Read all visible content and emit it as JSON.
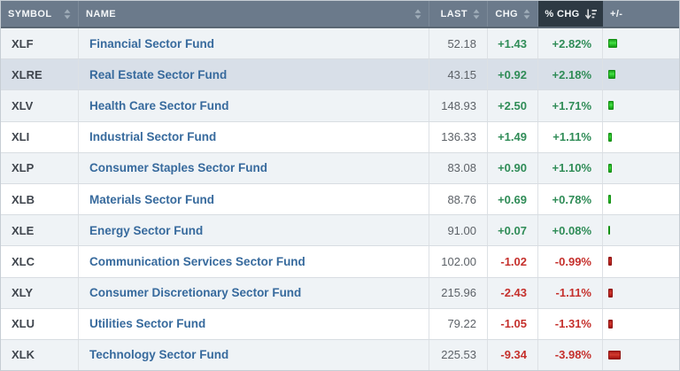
{
  "table": {
    "columns": [
      {
        "label": "SYMBOL",
        "sortable": true
      },
      {
        "label": "NAME",
        "sortable": true
      },
      {
        "label": "LAST",
        "sortable": true
      },
      {
        "label": "CHG",
        "sortable": true
      },
      {
        "label": "% CHG",
        "sortable": true,
        "active_sort": "desc"
      },
      {
        "label": "+/-",
        "sortable": false
      }
    ],
    "rows": [
      {
        "symbol": "XLF",
        "name": "Financial Sector Fund",
        "last": "52.18",
        "chg": "+1.43",
        "pct": "+2.82%",
        "dir": "up",
        "bar": 10
      },
      {
        "symbol": "XLRE",
        "name": "Real Estate Sector Fund",
        "last": "43.15",
        "chg": "+0.92",
        "pct": "+2.18%",
        "dir": "up",
        "bar": 8,
        "highlighted": true
      },
      {
        "symbol": "XLV",
        "name": "Health Care Sector Fund",
        "last": "148.93",
        "chg": "+2.50",
        "pct": "+1.71%",
        "dir": "up",
        "bar": 6
      },
      {
        "symbol": "XLI",
        "name": "Industrial Sector Fund",
        "last": "136.33",
        "chg": "+1.49",
        "pct": "+1.11%",
        "dir": "up",
        "bar": 4
      },
      {
        "symbol": "XLP",
        "name": "Consumer Staples Sector Fund",
        "last": "83.08",
        "chg": "+0.90",
        "pct": "+1.10%",
        "dir": "up",
        "bar": 4
      },
      {
        "symbol": "XLB",
        "name": "Materials Sector Fund",
        "last": "88.76",
        "chg": "+0.69",
        "pct": "+0.78%",
        "dir": "up",
        "bar": 3
      },
      {
        "symbol": "XLE",
        "name": "Energy Sector Fund",
        "last": "91.00",
        "chg": "+0.07",
        "pct": "+0.08%",
        "dir": "up",
        "bar": 2
      },
      {
        "symbol": "XLC",
        "name": "Communication Services Sector Fund",
        "last": "102.00",
        "chg": "-1.02",
        "pct": "-0.99%",
        "dir": "down",
        "bar": 4
      },
      {
        "symbol": "XLY",
        "name": "Consumer Discretionary Sector Fund",
        "last": "215.96",
        "chg": "-2.43",
        "pct": "-1.11%",
        "dir": "down",
        "bar": 5
      },
      {
        "symbol": "XLU",
        "name": "Utilities Sector Fund",
        "last": "79.22",
        "chg": "-1.05",
        "pct": "-1.31%",
        "dir": "down",
        "bar": 5
      },
      {
        "symbol": "XLK",
        "name": "Technology Sector Fund",
        "last": "225.53",
        "chg": "-9.34",
        "pct": "-3.98%",
        "dir": "down",
        "bar": 14
      }
    ]
  },
  "colors": {
    "header_bg": "#6b7a8b",
    "header_active_bg": "#2d3943",
    "stripe_bg": "#eff3f6",
    "highlight_bg": "#d8dfe8",
    "positive": "#2f8c57",
    "negative": "#c5302c",
    "name_link": "#376a9d"
  }
}
